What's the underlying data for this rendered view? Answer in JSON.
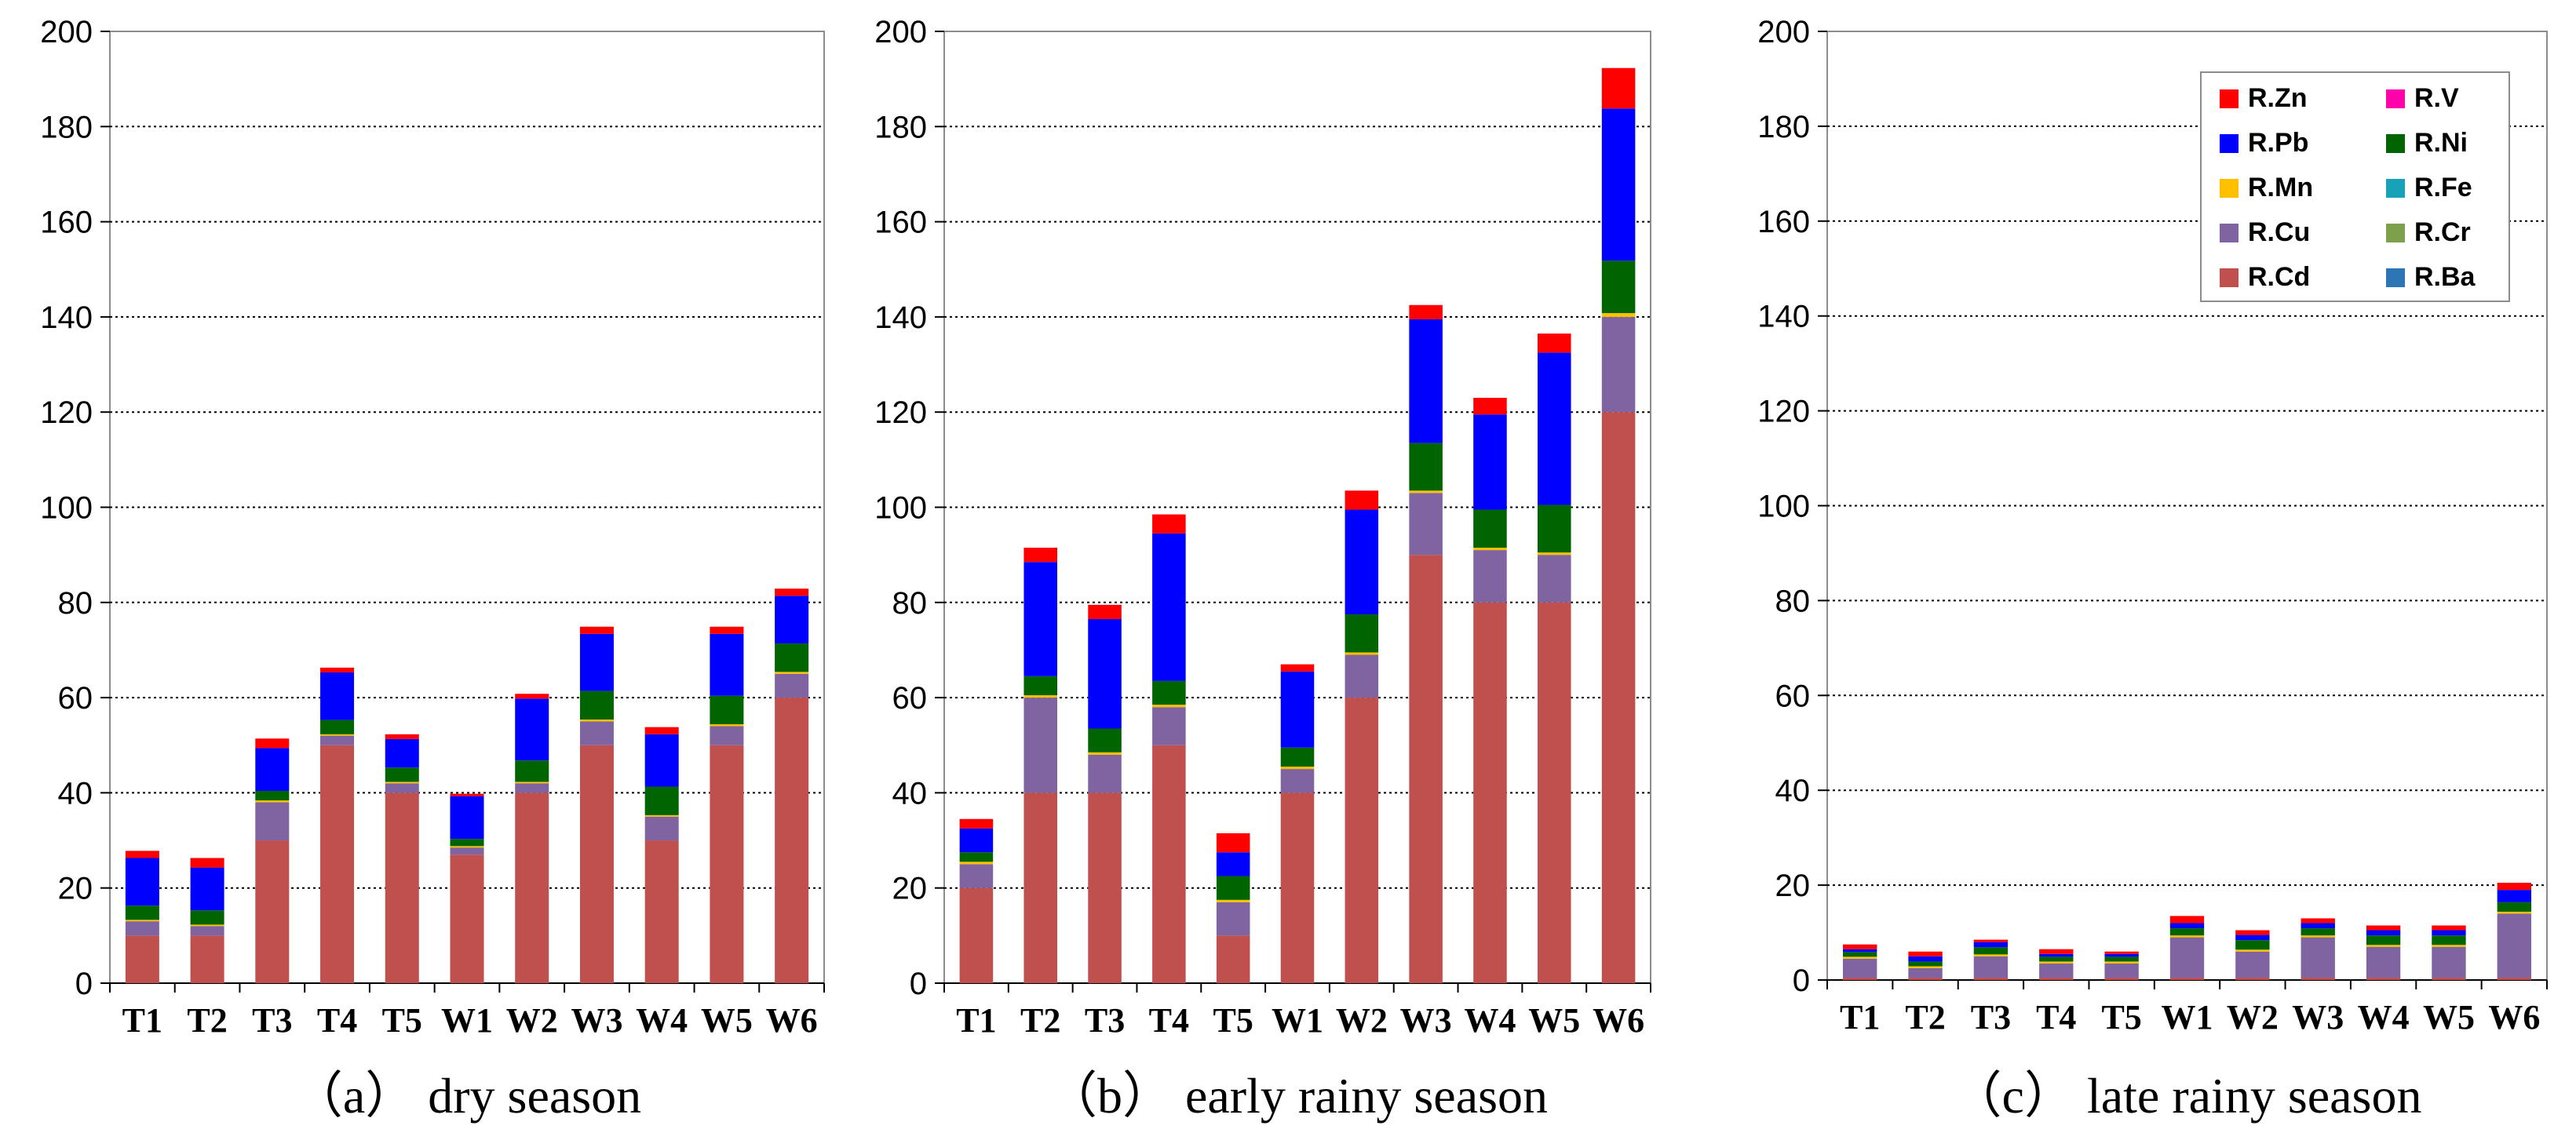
{
  "chart_data": [
    {
      "type": "bar",
      "stacked": true,
      "caption": "（a） dry season",
      "categories": [
        "T1",
        "T2",
        "T3",
        "T4",
        "T5",
        "W1",
        "W2",
        "W3",
        "W4",
        "W5",
        "W6"
      ],
      "ylim": [
        0,
        200
      ],
      "yticks": [
        0,
        20,
        40,
        60,
        80,
        100,
        120,
        140,
        160,
        180,
        200
      ],
      "grid": true,
      "series": [
        {
          "name": "R.Cd",
          "values": [
            10,
            10,
            30,
            50,
            40,
            27,
            40,
            50,
            30,
            50,
            60
          ]
        },
        {
          "name": "R.Cu",
          "values": [
            3,
            2,
            8,
            2,
            2,
            1.5,
            2,
            5,
            5,
            4,
            5
          ]
        },
        {
          "name": "R.Mn",
          "values": [
            0.3,
            0.3,
            0.4,
            0.3,
            0.3,
            0.3,
            0.3,
            0.4,
            0.3,
            0.4,
            0.4
          ]
        },
        {
          "name": "R.Ni",
          "values": [
            3,
            3,
            2,
            3,
            3,
            1.5,
            4.5,
            6,
            6,
            6,
            6
          ]
        },
        {
          "name": "R.Pb",
          "values": [
            10,
            9,
            9,
            10,
            6,
            9,
            13,
            12,
            11,
            13,
            10
          ]
        },
        {
          "name": "R.Zn",
          "values": [
            1.5,
            2,
            2,
            1,
            1,
            0.5,
            1,
            1.5,
            1.5,
            1.5,
            1.5
          ]
        }
      ]
    },
    {
      "type": "bar",
      "stacked": true,
      "caption": "（b） early rainy season",
      "categories": [
        "T1",
        "T2",
        "T3",
        "T4",
        "T5",
        "W1",
        "W2",
        "W3",
        "W4",
        "W5",
        "W6"
      ],
      "ylim": [
        0,
        200
      ],
      "yticks": [
        0,
        20,
        40,
        60,
        80,
        100,
        120,
        140,
        160,
        180,
        200
      ],
      "grid": true,
      "series": [
        {
          "name": "R.Cd",
          "values": [
            20,
            40,
            40,
            50,
            10,
            40,
            60,
            90,
            80,
            80,
            120
          ]
        },
        {
          "name": "R.Cu",
          "values": [
            5,
            20,
            8,
            8,
            7,
            5,
            9,
            13,
            11,
            10,
            20
          ]
        },
        {
          "name": "R.Mn",
          "values": [
            0.5,
            0.5,
            0.5,
            0.5,
            0.5,
            0.5,
            0.5,
            0.5,
            0.5,
            0.5,
            0.8
          ]
        },
        {
          "name": "R.Ni",
          "values": [
            2,
            4,
            5,
            5,
            5,
            4,
            8,
            10,
            8,
            10,
            11
          ]
        },
        {
          "name": "R.Pb",
          "values": [
            5,
            24,
            23,
            31,
            5,
            16,
            22,
            26,
            20,
            32,
            32
          ]
        },
        {
          "name": "R.Zn",
          "values": [
            2,
            3,
            3,
            4,
            4,
            1.5,
            4,
            3,
            3.5,
            4,
            8.5
          ]
        }
      ]
    },
    {
      "type": "bar",
      "stacked": true,
      "caption": "（c） late rainy season",
      "categories": [
        "T1",
        "T2",
        "T3",
        "T4",
        "T5",
        "W1",
        "W2",
        "W3",
        "W4",
        "W5",
        "W6"
      ],
      "ylim": [
        0,
        200
      ],
      "yticks": [
        0,
        20,
        40,
        60,
        80,
        100,
        120,
        140,
        160,
        180,
        200
      ],
      "grid": true,
      "series": [
        {
          "name": "R.Cd",
          "values": [
            0.5,
            0.5,
            0.5,
            0.5,
            0.5,
            0.5,
            0.5,
            0.5,
            0.5,
            0.5,
            0.5
          ]
        },
        {
          "name": "R.Cu",
          "values": [
            4,
            2,
            4.5,
            3,
            3,
            8.5,
            5.5,
            8.5,
            6.5,
            6.5,
            13.5
          ]
        },
        {
          "name": "R.Mn",
          "values": [
            0.4,
            0.4,
            0.4,
            0.4,
            0.4,
            0.4,
            0.4,
            0.4,
            0.4,
            0.4,
            0.4
          ]
        },
        {
          "name": "R.Ni",
          "values": [
            1,
            1,
            1.5,
            1,
            1,
            1.5,
            2,
            1.5,
            2,
            2,
            2
          ]
        },
        {
          "name": "R.Pb",
          "values": [
            0.6,
            1.1,
            1.1,
            0.6,
            0.6,
            1.1,
            1.1,
            1.1,
            1.1,
            1.1,
            2.6
          ]
        },
        {
          "name": "R.Zn",
          "values": [
            1,
            1,
            0.5,
            1,
            0.5,
            1.5,
            1,
            1,
            1,
            1,
            1.5
          ]
        }
      ]
    }
  ],
  "legend": {
    "placement": "top-right of panel (c)",
    "items": [
      {
        "name": "R.Zn",
        "color": "#ff0000"
      },
      {
        "name": "R.V",
        "color": "#ff00aa"
      },
      {
        "name": "R.Pb",
        "color": "#0000ff"
      },
      {
        "name": "R.Ni",
        "color": "#006400"
      },
      {
        "name": "R.Mn",
        "color": "#ffc000"
      },
      {
        "name": "R.Fe",
        "color": "#17a2b8"
      },
      {
        "name": "R.Cu",
        "color": "#8064a2"
      },
      {
        "name": "R.Cr",
        "color": "#7ea04d"
      },
      {
        "name": "R.Cd",
        "color": "#c0504d"
      },
      {
        "name": "R.Ba",
        "color": "#2e75b6"
      }
    ]
  }
}
